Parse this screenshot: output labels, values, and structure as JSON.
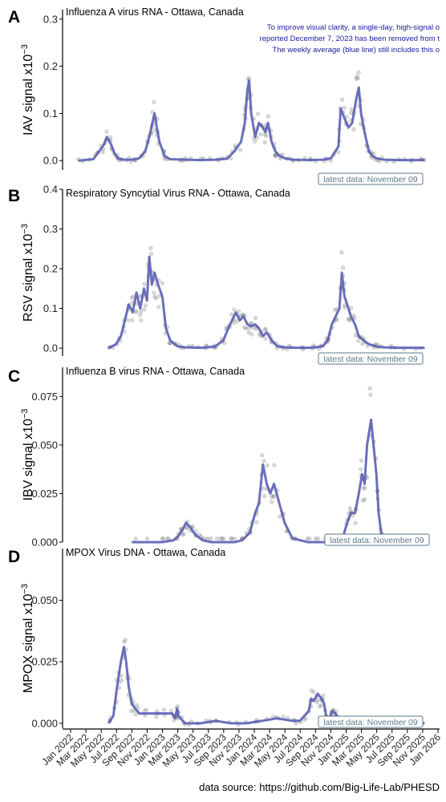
{
  "footer": {
    "source": "data source: https://github.com/Big-Life-Lab/PHESD"
  },
  "x_axis": {
    "ticks": [
      "Jan 2022",
      "Mar 2022",
      "May 2022",
      "Jul 2022",
      "Sep 2022",
      "Nov 2022",
      "Jan 2023",
      "Mar 2023",
      "May 2023",
      "Jul 2023",
      "Sep 2023",
      "Nov 2023",
      "Jan 2024",
      "Mar 2024",
      "May 2024",
      "Jul 2024",
      "Sep 2024",
      "Nov 2024",
      "Jan 2025",
      "Mar 2025",
      "May 2025",
      "Jul 2025",
      "Sep 2025",
      "Nov 2025",
      "Jan 2026"
    ]
  },
  "colors": {
    "line": "#5a5fb4",
    "points": "#7a7a7a",
    "note": "#1a1a9a",
    "badge_border": "#5d7a8c",
    "badge_text": "#5d7a8c"
  },
  "chart_data": [
    {
      "type": "line",
      "panel": "A",
      "title": "Influenza A virus RNA - Ottawa, Canada",
      "ylabel": "IAV signal x10",
      "ylabel_sup": "−3",
      "yticks": [
        "0.0",
        "0.1",
        "0.2",
        "0.3"
      ],
      "ylim": [
        -0.02,
        0.32
      ],
      "badge": "latest data: November 09",
      "note": [
        "To improve visual clarity, a single-day, high-signal o",
        "reported December 7, 2023 has been removed from t",
        "The weekly average (blue line) still includes this o"
      ],
      "series": [
        {
          "x": [
            "2022-02-01",
            "2022-04-01",
            "2022-04-25",
            "2022-05-15",
            "2022-05-25",
            "2022-06-10",
            "2022-06-25",
            "2022-07-10",
            "2022-08-01",
            "2022-09-01",
            "2022-10-01",
            "2022-10-25",
            "2022-11-10",
            "2022-11-22",
            "2022-12-01",
            "2022-12-10",
            "2022-12-20",
            "2023-01-10",
            "2023-02-01",
            "2023-04-01",
            "2023-06-01",
            "2023-08-01",
            "2023-09-15",
            "2023-10-15",
            "2023-11-10",
            "2023-11-25",
            "2023-12-05",
            "2023-12-12",
            "2023-12-20",
            "2024-01-05",
            "2024-01-20",
            "2024-02-05",
            "2024-02-15",
            "2024-02-25",
            "2024-03-10",
            "2024-03-25",
            "2024-04-10",
            "2024-05-01",
            "2024-06-01",
            "2024-08-01",
            "2024-10-01",
            "2024-11-01",
            "2024-12-01",
            "2024-12-10",
            "2024-12-25",
            "2025-01-10",
            "2025-01-25",
            "2025-02-10",
            "2025-02-20",
            "2025-03-01",
            "2025-03-15",
            "2025-04-01",
            "2025-04-15",
            "2025-05-01",
            "2025-06-01",
            "2025-08-01",
            "2025-10-01",
            "2025-11-09"
          ],
          "y": [
            0,
            0.003,
            0.02,
            0.035,
            0.05,
            0.035,
            0.015,
            0.004,
            0.002,
            0.002,
            0.005,
            0.02,
            0.05,
            0.08,
            0.1,
            0.07,
            0.04,
            0.01,
            0.003,
            0.002,
            0.001,
            0.002,
            0.004,
            0.02,
            0.04,
            0.08,
            0.15,
            0.17,
            0.1,
            0.05,
            0.08,
            0.07,
            0.06,
            0.08,
            0.04,
            0.02,
            0.01,
            0.005,
            0.002,
            0.001,
            0.002,
            0.005,
            0.03,
            0.11,
            0.09,
            0.07,
            0.08,
            0.13,
            0.155,
            0.1,
            0.06,
            0.02,
            0.01,
            0.005,
            0.002,
            0.001,
            0.001,
            0.001
          ]
        }
      ]
    },
    {
      "type": "line",
      "panel": "B",
      "title": "Respiratory Syncytial Virus RNA - Ottawa, Canada",
      "ylabel": "RSV signal x10",
      "ylabel_sup": "−3",
      "yticks": [
        "0.0",
        "0.1",
        "0.2",
        "0.3",
        "0.4"
      ],
      "ylim": [
        -0.02,
        0.4
      ],
      "badge": "latest data: November 09",
      "series": [
        {
          "x": [
            "2022-06-01",
            "2022-07-01",
            "2022-07-20",
            "2022-08-05",
            "2022-08-20",
            "2022-09-05",
            "2022-09-20",
            "2022-10-05",
            "2022-10-20",
            "2022-11-01",
            "2022-11-10",
            "2022-11-20",
            "2022-12-01",
            "2022-12-15",
            "2023-01-01",
            "2023-01-15",
            "2023-02-01",
            "2023-03-01",
            "2023-04-01",
            "2023-06-01",
            "2023-07-01",
            "2023-08-01",
            "2023-09-01",
            "2023-09-20",
            "2023-10-05",
            "2023-10-20",
            "2023-11-05",
            "2023-11-20",
            "2023-12-05",
            "2023-12-20",
            "2024-01-05",
            "2024-01-20",
            "2024-02-05",
            "2024-02-20",
            "2024-03-10",
            "2024-04-01",
            "2024-05-01",
            "2024-06-01",
            "2024-08-01",
            "2024-09-01",
            "2024-10-01",
            "2024-10-20",
            "2024-11-05",
            "2024-11-20",
            "2024-12-05",
            "2024-12-15",
            "2024-12-25",
            "2025-01-05",
            "2025-01-20",
            "2025-02-05",
            "2025-02-20",
            "2025-03-10",
            "2025-04-01",
            "2025-05-01",
            "2025-06-01",
            "2025-08-01",
            "2025-11-09"
          ],
          "y": [
            0,
            0.01,
            0.03,
            0.07,
            0.11,
            0.09,
            0.14,
            0.1,
            0.15,
            0.12,
            0.23,
            0.16,
            0.19,
            0.16,
            0.13,
            0.05,
            0.02,
            0.005,
            0.002,
            0.001,
            0.002,
            0.005,
            0.02,
            0.05,
            0.07,
            0.09,
            0.07,
            0.08,
            0.06,
            0.055,
            0.06,
            0.05,
            0.03,
            0.04,
            0.02,
            0.005,
            0.002,
            0.001,
            0.001,
            0.002,
            0.005,
            0.02,
            0.06,
            0.08,
            0.1,
            0.19,
            0.13,
            0.11,
            0.08,
            0.06,
            0.03,
            0.02,
            0.01,
            0.004,
            0.002,
            0.001,
            0.001
          ]
        }
      ]
    },
    {
      "type": "line",
      "panel": "C",
      "title": "Influenza B virus RNA - Ottawa, Canada",
      "ylabel": "IBV signal x10",
      "ylabel_sup": "−3",
      "yticks": [
        "0.000",
        "0.025",
        "0.050",
        "0.075"
      ],
      "ylim": [
        0,
        0.09
      ],
      "badge": "latest data: November 09",
      "series": [
        {
          "x": [
            "2022-09-01",
            "2023-01-01",
            "2023-02-15",
            "2023-03-05",
            "2023-03-20",
            "2023-04-05",
            "2023-04-20",
            "2023-05-05",
            "2023-05-20",
            "2023-06-10",
            "2023-07-15",
            "2023-09-01",
            "2023-10-15",
            "2023-11-15",
            "2023-12-15",
            "2024-01-05",
            "2024-01-20",
            "2024-02-05",
            "2024-02-20",
            "2024-03-05",
            "2024-03-20",
            "2024-04-10",
            "2024-05-01",
            "2024-06-01",
            "2024-08-01",
            "2024-10-01",
            "2024-12-01",
            "2024-12-20",
            "2025-01-05",
            "2025-01-20",
            "2025-02-05",
            "2025-02-20",
            "2025-03-05",
            "2025-03-15",
            "2025-03-25",
            "2025-04-10",
            "2025-05-01",
            "2025-05-10",
            "2025-05-20",
            "2025-06-01",
            "2025-06-15",
            "2025-07-01",
            "2025-09-01",
            "2025-11-09"
          ],
          "y": [
            0,
            0,
            0.001,
            0.003,
            0.006,
            0.01,
            0.008,
            0.005,
            0.003,
            0.001,
            0,
            0,
            0,
            0.001,
            0.005,
            0.015,
            0.02,
            0.04,
            0.03,
            0.025,
            0.03,
            0.02,
            0.01,
            0.002,
            0,
            0,
            0,
            0.003,
            0.01,
            0.015,
            0.015,
            0.025,
            0.035,
            0.03,
            0.05,
            0.063,
            0.035,
            0.015,
            0.005,
            0.002,
            0.001,
            0,
            0,
            0
          ]
        }
      ]
    },
    {
      "type": "line",
      "panel": "D",
      "title": "MPOX Virus DNA - Ottawa, Canada",
      "ylabel": "MPOX signal x10",
      "ylabel_sup": "−3",
      "yticks": [
        "0.000",
        "0.025",
        "0.050"
      ],
      "ylim": [
        -0.002,
        0.071
      ],
      "badge": "latest data: November 09",
      "series": [
        {
          "x": [
            "2022-06-01",
            "2022-06-20",
            "2022-07-05",
            "2022-07-20",
            "2022-08-01",
            "2022-08-10",
            "2022-08-20",
            "2022-09-01",
            "2022-09-15",
            "2022-10-01",
            "2022-11-01",
            "2023-01-01",
            "2023-02-10",
            "2023-02-20",
            "2023-03-01",
            "2023-03-05",
            "2023-03-15",
            "2023-04-01",
            "2023-06-01",
            "2023-08-01",
            "2023-10-01",
            "2023-12-01",
            "2024-02-01",
            "2024-04-01",
            "2024-06-01",
            "2024-07-01",
            "2024-08-05",
            "2024-08-15",
            "2024-08-25",
            "2024-09-10",
            "2024-09-25",
            "2024-10-05",
            "2024-10-15",
            "2024-10-25",
            "2024-11-05",
            "2024-11-20",
            "2024-12-05",
            "2025-01-01",
            "2025-04-01",
            "2025-08-01",
            "2025-11-09"
          ],
          "y": [
            0,
            0.003,
            0.015,
            0.025,
            0.031,
            0.025,
            0.015,
            0.008,
            0.006,
            0.004,
            0.004,
            0.004,
            0.004,
            0.002,
            0.006,
            0.003,
            0.002,
            0,
            0,
            0.001,
            0,
            0,
            0.001,
            0.002,
            0.001,
            0.001,
            0.005,
            0.01,
            0.009,
            0.012,
            0.01,
            0.008,
            0.002,
            0.001,
            0.005,
            0.004,
            0,
            0,
            0,
            0,
            0
          ]
        }
      ]
    }
  ]
}
